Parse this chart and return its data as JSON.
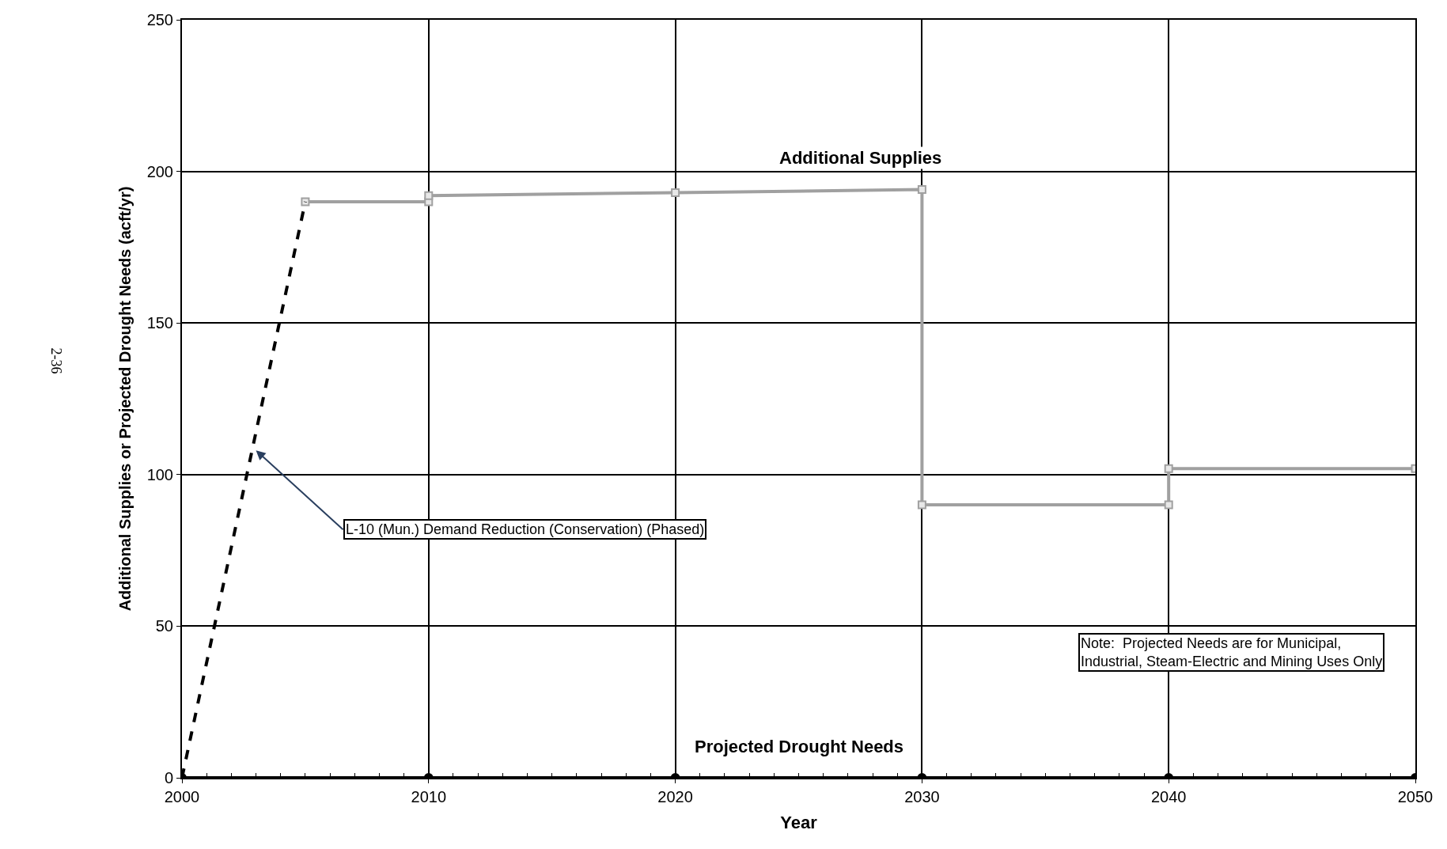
{
  "chart_data": {
    "type": "line",
    "xlabel": "Year",
    "ylabel": "Additional Supplies or Projected Drought Needs (acft/yr)",
    "xlim": [
      2000,
      2050
    ],
    "xticks": [
      2000,
      2010,
      2020,
      2030,
      2040,
      2050
    ],
    "ylim": [
      0,
      250
    ],
    "yticks": [
      0,
      50,
      100,
      150,
      200,
      250
    ],
    "grid": true,
    "legend": false,
    "series": [
      {
        "name": "Additional Supplies",
        "color": "#a0a0a0",
        "marker": "square",
        "line_style": "solid",
        "x": [
          2005,
          2010,
          2010,
          2020,
          2030,
          2030,
          2040,
          2040,
          2050
        ],
        "values": [
          190,
          190,
          192,
          193,
          194,
          90,
          90,
          102,
          102
        ]
      },
      {
        "color": "#000000",
        "line_style": "dashed",
        "x": [
          2000,
          2005
        ],
        "values": [
          0,
          190
        ]
      },
      {
        "name": "Projected Drought Needs",
        "color": "#000000",
        "marker": "circle",
        "line_style": "solid",
        "x": [
          2000,
          2010,
          2020,
          2030,
          2040,
          2050
        ],
        "values": [
          0,
          0,
          0,
          0,
          0,
          0
        ]
      }
    ],
    "annotations": [
      {
        "text": "L-10 (Mun.) Demand Reduction (Conservation) (Phased)",
        "x": 2003,
        "y": 108
      },
      "Note:  Projected Needs are for Municipal,\nIndustrial, Steam-Electric and Mining Uses Only",
      "2-36"
    ]
  }
}
